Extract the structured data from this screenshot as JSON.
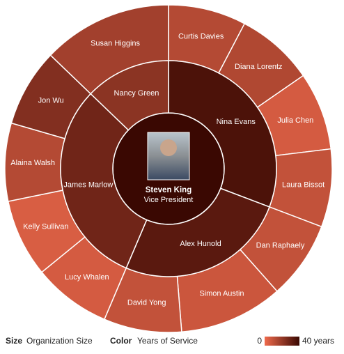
{
  "chart_data": {
    "type": "sunburst",
    "root": {
      "name": "Steven King",
      "title": "Vice President",
      "years": 40,
      "children": [
        {
          "name": "Nina Evans",
          "years": 36,
          "children": [
            {
              "name": "Curtis Davies",
              "size": 3,
              "years": 13
            },
            {
              "name": "Diana Lorentz",
              "size": 3,
              "years": 14
            },
            {
              "name": "Julia Chen",
              "size": 3,
              "years": 6
            },
            {
              "name": "Laura Bissot",
              "size": 3,
              "years": 10
            }
          ]
        },
        {
          "name": "Alex Hunold",
          "years": 33,
          "children": [
            {
              "name": "Dan Raphaely",
              "size": 3,
              "years": 10
            },
            {
              "name": "Simon Austin",
              "size": 4,
              "years": 8
            },
            {
              "name": "David Yong",
              "size": 3,
              "years": 10
            }
          ]
        },
        {
          "name": "James Marlow",
          "years": 28,
          "children": [
            {
              "name": "Lucy Whalen",
              "size": 3,
              "years": 6
            },
            {
              "name": "Kelly Sullivan",
              "size": 3,
              "years": 5
            },
            {
              "name": "Alaina Walsh",
              "size": 3,
              "years": 13
            },
            {
              "name": "Jon Wu",
              "size": 3,
              "years": 24
            }
          ]
        },
        {
          "name": "Nancy Green",
          "years": 22,
          "children": [
            {
              "name": "Susan Higgins",
              "size": 5,
              "years": 17
            }
          ]
        }
      ]
    },
    "size_label": "Size",
    "size_field": "Organization Size",
    "color_label": "Color",
    "color_field": "Years of Service",
    "color_ticks": [
      0,
      {
        "value": 40,
        "label": "40 years"
      }
    ],
    "colors": [
      "#ef6a4c",
      "#3a0802"
    ]
  }
}
